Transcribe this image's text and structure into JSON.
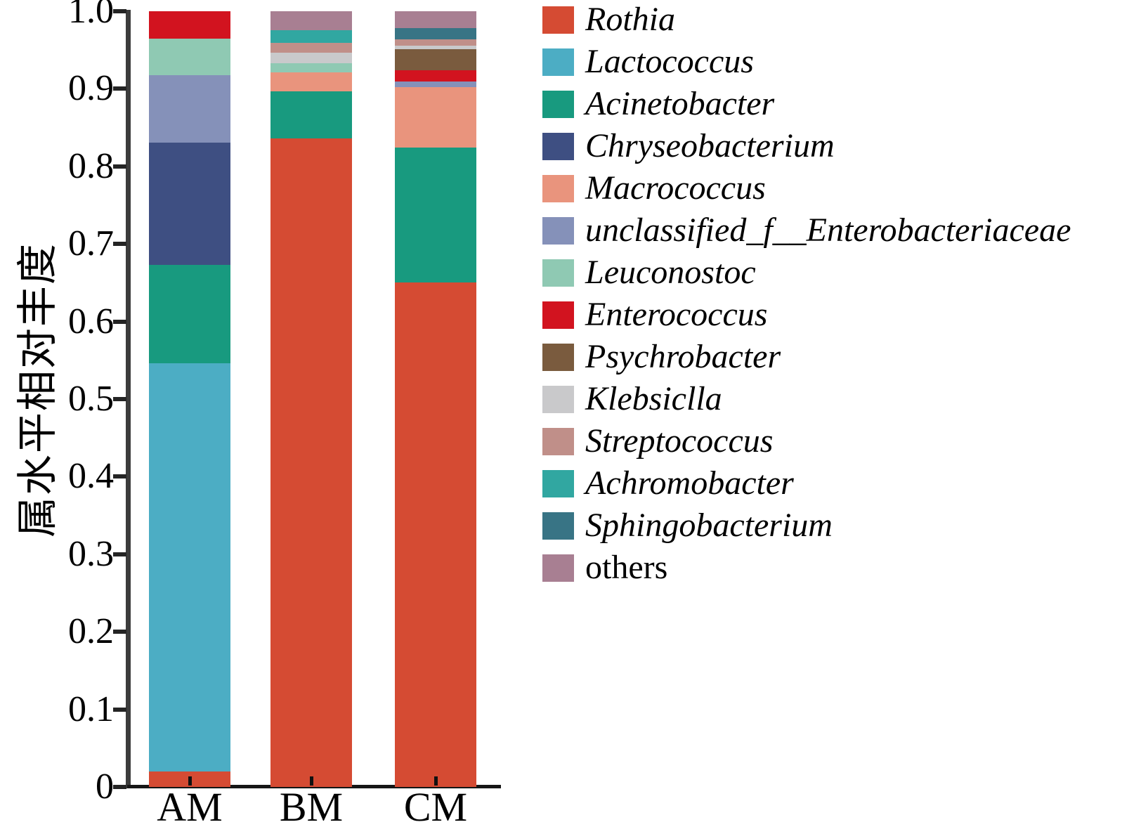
{
  "chart_data": {
    "type": "bar",
    "stacked": true,
    "title": "",
    "ylabel": "属水平相对丰度",
    "xlabel": "",
    "ylim": [
      0,
      1.0
    ],
    "yticks": [
      "1.0",
      "0.9",
      "0.8",
      "0.7",
      "0.6",
      "0.5",
      "0.4",
      "0.3",
      "0.2",
      "0.1",
      "0"
    ],
    "categories": [
      "AM",
      "BM",
      "CM"
    ],
    "grid": false,
    "legend_position": "right",
    "axis_color": "#2b2b2b",
    "background_color": "#ffffff",
    "series": [
      {
        "name": "Rothia",
        "color": "#d54b33",
        "italic": true,
        "values": [
          0.02,
          0.836,
          0.65
        ]
      },
      {
        "name": "Lactococcus",
        "color": "#4cadc4",
        "italic": true,
        "values": [
          0.526,
          0.0,
          0.0
        ]
      },
      {
        "name": "Acinetobacter",
        "color": "#189a7f",
        "italic": true,
        "values": [
          0.127,
          0.061,
          0.174
        ]
      },
      {
        "name": "Chryseobacterium",
        "color": "#3e4f82",
        "italic": true,
        "values": [
          0.158,
          0.0,
          0.0
        ]
      },
      {
        "name": "Macrococcus",
        "color": "#e9947d",
        "italic": true,
        "values": [
          0.0,
          0.024,
          0.078
        ]
      },
      {
        "name": "unclassified_f__Enterobacteriaceae",
        "color": "#8591b9",
        "italic": true,
        "values": [
          0.087,
          0.0,
          0.007
        ]
      },
      {
        "name": "Leuconostoc",
        "color": "#8fc9b3",
        "italic": true,
        "values": [
          0.047,
          0.012,
          0.0
        ]
      },
      {
        "name": "Enterococcus",
        "color": "#d2131f",
        "italic": true,
        "values": [
          0.035,
          0.0,
          0.015
        ]
      },
      {
        "name": "Psychrobacter",
        "color": "#7a5b3e",
        "italic": true,
        "values": [
          0.0,
          0.0,
          0.027
        ]
      },
      {
        "name": "Klebsiclla",
        "color": "#c9c9cb",
        "italic": true,
        "values": [
          0.0,
          0.014,
          0.005
        ]
      },
      {
        "name": "Streptococcus",
        "color": "#c08f89",
        "italic": true,
        "values": [
          0.0,
          0.012,
          0.008
        ]
      },
      {
        "name": "Achromobacter",
        "color": "#31a7a1",
        "italic": true,
        "values": [
          0.0,
          0.017,
          0.0
        ]
      },
      {
        "name": "Sphingobacterium",
        "color": "#387485",
        "italic": true,
        "values": [
          0.0,
          0.0,
          0.014
        ]
      },
      {
        "name": "others",
        "color": "#a87f92",
        "italic": false,
        "values": [
          0.0,
          0.024,
          0.022
        ]
      }
    ]
  }
}
